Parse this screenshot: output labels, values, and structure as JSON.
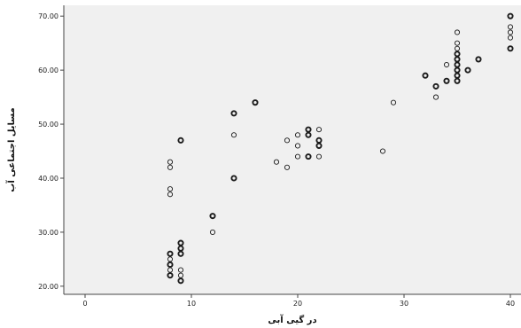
{
  "chart_data": {
    "type": "scatter",
    "title": "",
    "xlabel": "در گیی آبی",
    "ylabel": "مسایل اجتماعی آب",
    "xlim": [
      -2,
      41
    ],
    "ylim": [
      18.5,
      72
    ],
    "x_ticks": [
      0,
      10,
      20,
      30,
      40
    ],
    "y_ticks": [
      20,
      30,
      40,
      50,
      60,
      70
    ],
    "x_tick_labels": [
      "0",
      "10",
      "20",
      "30",
      "40"
    ],
    "y_tick_labels": [
      "20.00",
      "30.00",
      "40.00",
      "50.00",
      "60.00",
      "70.00"
    ],
    "grid": false,
    "plot_background": "#f0f0f0",
    "marker_color": "#1a1a1a",
    "points": [
      [
        8,
        22
      ],
      [
        8,
        23
      ],
      [
        8,
        24
      ],
      [
        8,
        25
      ],
      [
        8,
        26
      ],
      [
        8,
        37
      ],
      [
        8,
        38
      ],
      [
        8,
        42
      ],
      [
        8,
        43
      ],
      [
        9,
        21
      ],
      [
        9,
        22
      ],
      [
        9,
        23
      ],
      [
        9,
        26
      ],
      [
        9,
        27
      ],
      [
        9,
        28
      ],
      [
        9,
        47
      ],
      [
        12,
        30
      ],
      [
        12,
        33
      ],
      [
        14,
        40
      ],
      [
        14,
        48
      ],
      [
        14,
        52
      ],
      [
        16,
        54
      ],
      [
        18,
        43
      ],
      [
        19,
        42
      ],
      [
        19,
        47
      ],
      [
        20,
        44
      ],
      [
        20,
        46
      ],
      [
        20,
        48
      ],
      [
        21,
        44
      ],
      [
        21,
        48
      ],
      [
        21,
        49
      ],
      [
        22,
        44
      ],
      [
        22,
        46
      ],
      [
        22,
        47
      ],
      [
        22,
        49
      ],
      [
        28,
        45
      ],
      [
        29,
        54
      ],
      [
        32,
        59
      ],
      [
        33,
        55
      ],
      [
        33,
        57
      ],
      [
        34,
        58
      ],
      [
        34,
        61
      ],
      [
        35,
        58
      ],
      [
        35,
        59
      ],
      [
        35,
        60
      ],
      [
        35,
        61
      ],
      [
        35,
        62
      ],
      [
        35,
        63
      ],
      [
        35,
        64
      ],
      [
        35,
        65
      ],
      [
        35,
        67
      ],
      [
        36,
        60
      ],
      [
        37,
        62
      ],
      [
        40,
        64
      ],
      [
        40,
        66
      ],
      [
        40,
        67
      ],
      [
        40,
        68
      ],
      [
        40,
        70
      ]
    ],
    "bold_points": [
      [
        8,
        22
      ],
      [
        8,
        24
      ],
      [
        8,
        26
      ],
      [
        9,
        21
      ],
      [
        9,
        26
      ],
      [
        9,
        27
      ],
      [
        9,
        28
      ],
      [
        9,
        47
      ],
      [
        12,
        33
      ],
      [
        14,
        40
      ],
      [
        14,
        52
      ],
      [
        16,
        54
      ],
      [
        21,
        44
      ],
      [
        21,
        48
      ],
      [
        21,
        49
      ],
      [
        22,
        46
      ],
      [
        22,
        47
      ],
      [
        32,
        59
      ],
      [
        33,
        57
      ],
      [
        34,
        58
      ],
      [
        35,
        58
      ],
      [
        35,
        59
      ],
      [
        35,
        60
      ],
      [
        35,
        61
      ],
      [
        35,
        62
      ],
      [
        35,
        63
      ],
      [
        36,
        60
      ],
      [
        37,
        62
      ],
      [
        40,
        64
      ],
      [
        40,
        70
      ]
    ]
  }
}
